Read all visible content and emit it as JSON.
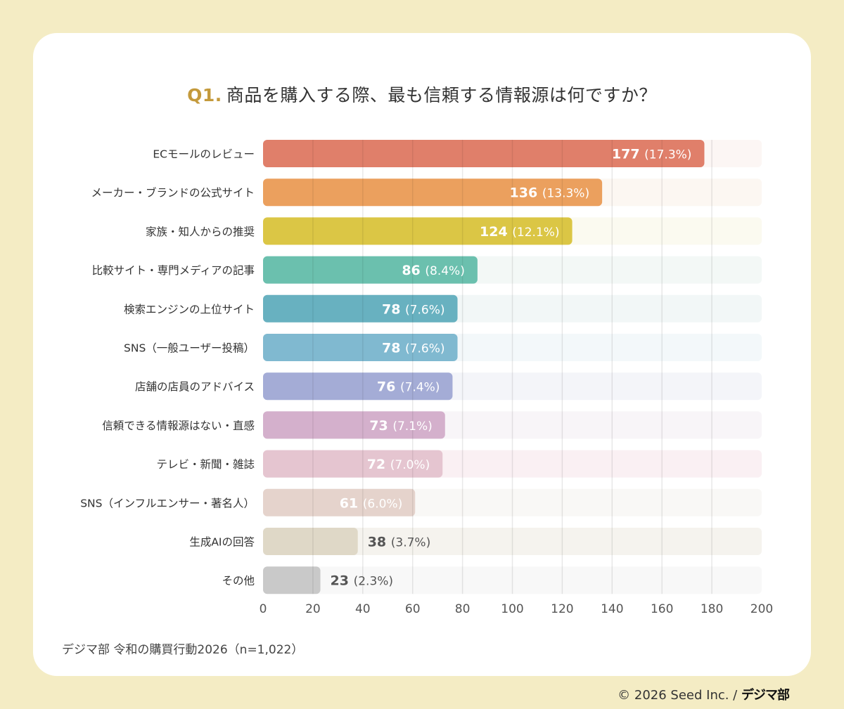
{
  "chart_data": {
    "type": "bar",
    "orientation": "horizontal",
    "title_prefix": "Q1.",
    "title": "商品を購入する際、最も信頼する情報源は何ですか？",
    "categories": [
      "ECモールのレビュー",
      "メーカー・ブランドの公式サイト",
      "家族・知人からの推奨",
      "比較サイト・専門メディアの記事",
      "検索エンジンの上位サイト",
      "SNS（一般ユーザー投稿）",
      "店舗の店員のアドバイス",
      "信頼できる情報源はない・直感",
      "テレビ・新聞・雑誌",
      "SNS（インフルエンサー・著名人）",
      "生成AIの回答",
      "その他"
    ],
    "values": [
      177,
      136,
      124,
      86,
      78,
      78,
      76,
      73,
      72,
      61,
      38,
      23
    ],
    "percents": [
      "(17.3%)",
      "(13.3%)",
      "(12.1%)",
      "(8.4%)",
      "(7.6%)",
      "(7.6%)",
      "(7.4%)",
      "(7.1%)",
      "(7.0%)",
      "(6.0%)",
      "(3.7%)",
      "(2.3%)"
    ],
    "colors": [
      "#E07F6A",
      "#EBA05E",
      "#DBC645",
      "#6BC0AE",
      "#68B1C0",
      "#80B9D0",
      "#A4ACD6",
      "#D4B0CC",
      "#E5C5D0",
      "#E5D3CC",
      "#DFD8C7",
      "#C9C9C9"
    ],
    "track_colors": [
      "#FCF6F4",
      "#FCF7F2",
      "#FBFAF0",
      "#F3F8F6",
      "#F2F7F7",
      "#F3F8FA",
      "#F4F5F9",
      "#F8F5F8",
      "#FAF0F3",
      "#F9F8F6",
      "#F5F3EE",
      "#F8F8F8"
    ],
    "xlim": [
      0,
      200
    ],
    "xticks": [
      "0",
      "20",
      "40",
      "60",
      "80",
      "100",
      "120",
      "140",
      "160",
      "180",
      "200"
    ],
    "grid": true
  },
  "source": "デジマ部 令和の購買行動2026（n=1,022）",
  "copyright": "© 2026 Seed Inc. /",
  "brand": "デジマ部"
}
